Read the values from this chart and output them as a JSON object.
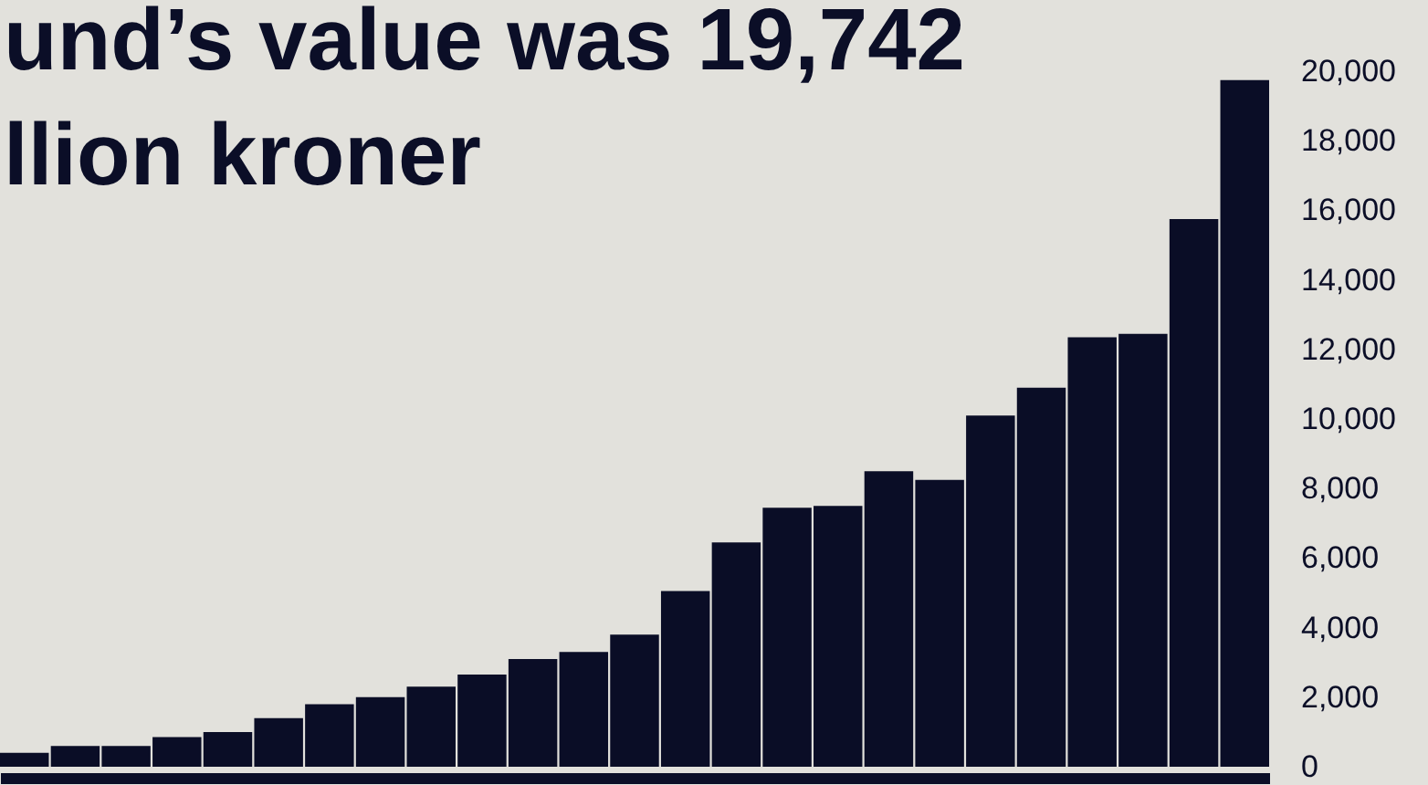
{
  "chart_data": {
    "type": "bar",
    "title": "und’s value was 19,742 llion kroner",
    "categories": [
      null,
      null,
      null,
      null,
      null,
      null,
      null,
      null,
      null,
      null,
      null,
      null,
      null,
      null,
      null,
      null,
      null,
      null,
      null,
      null,
      null,
      null,
      null,
      null,
      null
    ],
    "values": [
      400,
      600,
      600,
      850,
      1000,
      1400,
      1800,
      2000,
      2300,
      2650,
      3100,
      3300,
      3800,
      5050,
      6450,
      7450,
      7500,
      8500,
      8250,
      10100,
      10900,
      12350,
      12450,
      15750,
      19742
    ],
    "color": "#0a0d26",
    "ylim": [
      0,
      20000
    ],
    "yticks": [
      0,
      {
        "value": 2000,
        "label": "2,000"
      },
      {
        "value": 4000,
        "label": "4,000"
      },
      {
        "value": 6000,
        "label": "6,000"
      },
      {
        "value": 8000,
        "label": "8,000"
      },
      {
        "value": 10000,
        "label": "10,000"
      },
      {
        "value": 12000,
        "label": "12,000"
      },
      {
        "value": 14000,
        "label": "14,000"
      },
      {
        "value": 16000,
        "label": "16,000"
      },
      {
        "value": 18000,
        "label": "18,000"
      },
      {
        "value": 20000,
        "label": "20,000"
      }
    ]
  }
}
